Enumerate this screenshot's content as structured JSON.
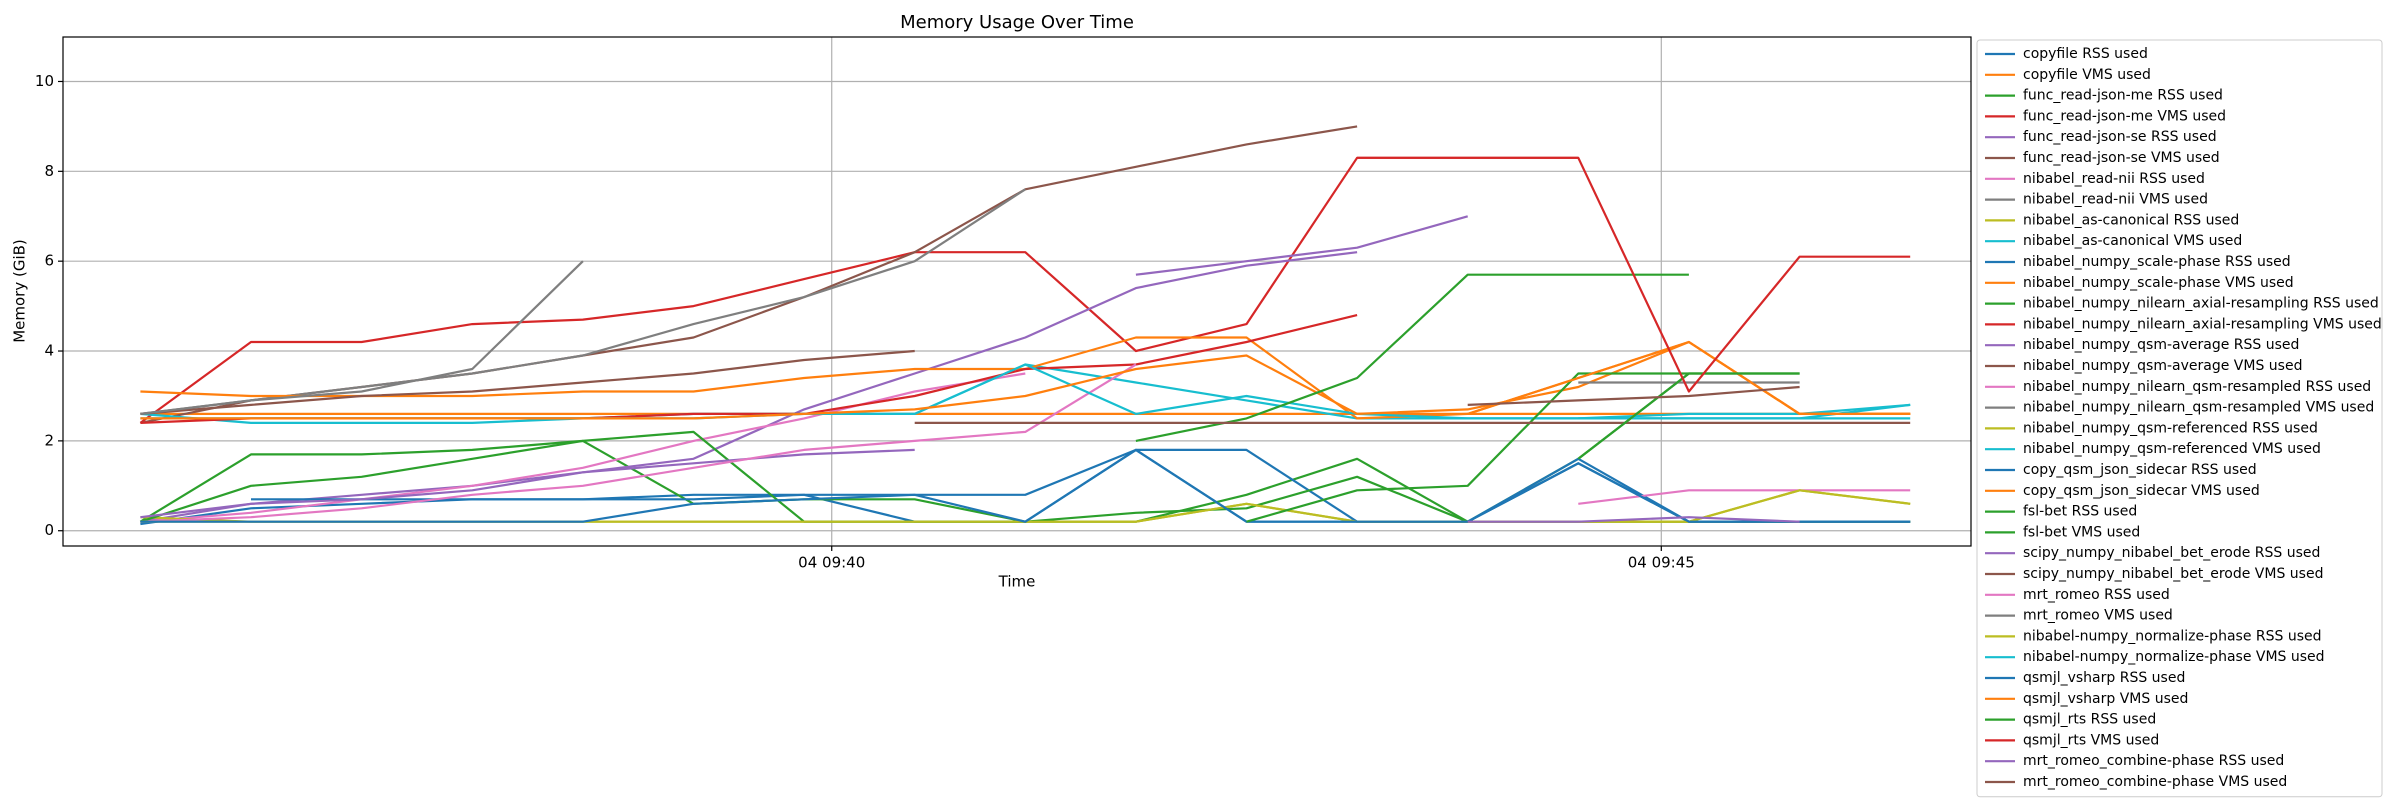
{
  "chart_data": {
    "type": "line",
    "title": "Memory Usage Over Time",
    "x_label": "Time",
    "y_label": "Memory (GiB)",
    "x": [
      "04 09:35:50",
      "04 09:36:30",
      "04 09:37:10",
      "04 09:37:50",
      "04 09:38:30",
      "04 09:39:10",
      "04 09:39:50",
      "04 09:40:30",
      "04 09:41:10",
      "04 09:41:50",
      "04 09:42:30",
      "04 09:43:10",
      "04 09:43:50",
      "04 09:44:30",
      "04 09:45:10",
      "04 09:45:50",
      "04 09:46:30"
    ],
    "xlim": [
      "04 09:35:22",
      "04 09:46:52"
    ],
    "xticks": [
      "04 09:40",
      "04 09:45"
    ],
    "ylim": [
      -0.34,
      10.99
    ],
    "yticks": [
      0,
      2,
      4,
      6,
      8,
      10
    ],
    "grid": true,
    "legend": "outside-right",
    "series": [
      {
        "name": "copyfile RSS used",
        "color": "#1f77b4",
        "values": [
          0.15,
          0.5,
          0.6,
          0.7,
          0.7,
          0.8,
          0.8,
          0.2,
          0.2,
          1.8,
          0.2,
          0.2,
          0.2,
          1.5,
          0.2,
          0.2,
          0.2
        ]
      },
      {
        "name": "copyfile VMS used",
        "color": "#ff7f0e",
        "values": [
          2.6,
          2.6,
          2.6,
          2.6,
          2.6,
          2.6,
          2.6,
          2.6,
          2.6,
          2.6,
          2.6,
          2.6,
          2.6,
          2.6,
          2.6,
          2.6,
          2.6
        ]
      },
      {
        "name": "func_read-json-me RSS used",
        "color": "#2ca02c",
        "values": [
          0.2,
          1.7,
          1.7,
          1.8,
          2.0,
          0.6,
          0.7,
          0.7,
          0.2,
          0.2,
          0.8,
          1.6,
          0.2,
          1.6,
          3.5,
          3.5,
          null
        ]
      },
      {
        "name": "func_read-json-me VMS used",
        "color": "#d62728",
        "values": [
          2.4,
          4.2,
          4.2,
          4.6,
          4.7,
          5.0,
          5.6,
          6.2,
          6.2,
          4.0,
          4.6,
          8.3,
          8.3,
          8.3,
          null,
          null,
          null
        ]
      },
      {
        "name": "func_read-json-se RSS used",
        "color": "#9467bd",
        "values": [
          0.2,
          0.6,
          0.8,
          1.0,
          1.3,
          1.6,
          2.7,
          3.5,
          4.3,
          5.4,
          5.9,
          6.2,
          null,
          null,
          null,
          null,
          null
        ]
      },
      {
        "name": "func_read-json-se VMS used",
        "color": "#8c564b",
        "values": [
          2.4,
          2.9,
          3.2,
          3.5,
          3.9,
          4.3,
          5.2,
          6.2,
          7.6,
          8.1,
          8.6,
          9.0,
          null,
          null,
          null,
          null,
          null
        ]
      },
      {
        "name": "nibabel_read-nii RSS used",
        "color": "#e377c2",
        "values": [
          0.2,
          0.4,
          0.7,
          1.0,
          1.4,
          2.0,
          2.5,
          3.1,
          3.5,
          null,
          null,
          null,
          null,
          null,
          null,
          null,
          null
        ]
      },
      {
        "name": "nibabel_read-nii VMS used",
        "color": "#7f7f7f",
        "values": [
          2.6,
          2.9,
          3.2,
          3.5,
          3.9,
          4.6,
          5.2,
          6.0,
          7.6,
          null,
          null,
          null,
          null,
          null,
          null,
          null,
          null
        ]
      },
      {
        "name": "nibabel_as-canonical RSS used",
        "color": "#bcbd22",
        "values": [
          0.3,
          0.2,
          0.2,
          0.2,
          0.2,
          0.2,
          0.2,
          0.2,
          0.2,
          0.2,
          0.6,
          0.2,
          0.2,
          0.2,
          0.2,
          0.9,
          0.6
        ]
      },
      {
        "name": "nibabel_as-canonical VMS used",
        "color": "#17becf",
        "values": [
          2.6,
          2.4,
          2.4,
          2.4,
          2.5,
          2.6,
          2.6,
          2.6,
          3.7,
          3.3,
          2.9,
          2.5,
          2.5,
          2.5,
          2.6,
          2.6,
          2.8
        ]
      },
      {
        "name": "nibabel_numpy_scale-phase RSS used",
        "color": "#1f77b4",
        "values": [
          null,
          0.7,
          0.7,
          0.7,
          0.7,
          0.7,
          0.8,
          0.8,
          0.8,
          1.8,
          1.8,
          0.2,
          0.2,
          1.6,
          0.2,
          0.2,
          0.2
        ]
      },
      {
        "name": "nibabel_numpy_scale-phase VMS used",
        "color": "#ff7f0e",
        "values": [
          3.1,
          3.0,
          3.0,
          3.0,
          3.1,
          3.1,
          3.4,
          3.6,
          3.6,
          4.3,
          4.3,
          2.5,
          2.6,
          3.4,
          4.2,
          2.6,
          2.6
        ]
      },
      {
        "name": "nibabel_numpy_nilearn_axial-resampling RSS used",
        "color": "#2ca02c",
        "values": [
          0.2,
          1.0,
          1.2,
          1.6,
          2.0,
          2.2,
          0.2,
          0.2,
          0.2,
          0.4,
          0.5,
          1.2,
          0.2,
          0.2,
          0.2,
          0.2,
          0.2
        ]
      },
      {
        "name": "nibabel_numpy_nilearn_axial-resampling VMS used",
        "color": "#d62728",
        "values": [
          2.4,
          2.5,
          2.5,
          2.5,
          2.5,
          2.6,
          2.6,
          3.0,
          3.6,
          3.7,
          4.2,
          4.8,
          null,
          null,
          null,
          null,
          null
        ]
      },
      {
        "name": "nibabel_numpy_qsm-average RSS used",
        "color": "#9467bd",
        "values": [
          0.3,
          0.6,
          0.7,
          0.9,
          1.3,
          1.5,
          1.7,
          1.8,
          null,
          null,
          null,
          null,
          null,
          null,
          null,
          null,
          null
        ]
      },
      {
        "name": "nibabel_numpy_qsm-average VMS used",
        "color": "#8c564b",
        "values": [
          2.6,
          2.8,
          3.0,
          3.1,
          3.3,
          3.5,
          3.8,
          4.0,
          null,
          null,
          null,
          null,
          null,
          null,
          null,
          null,
          null
        ]
      },
      {
        "name": "nibabel_numpy_nilearn_qsm-resampled RSS used",
        "color": "#e377c2",
        "values": [
          0.2,
          0.3,
          0.5,
          0.8,
          1.0,
          1.4,
          1.8,
          2.0,
          2.2,
          3.7,
          null,
          null,
          null,
          null,
          null,
          null,
          null
        ]
      },
      {
        "name": "nibabel_numpy_nilearn_qsm-resampled VMS used",
        "color": "#7f7f7f",
        "values": [
          2.6,
          2.9,
          3.1,
          3.6,
          6.0,
          null,
          null,
          null,
          null,
          null,
          null,
          null,
          null,
          null,
          null,
          null,
          null
        ]
      },
      {
        "name": "nibabel_numpy_qsm-referenced RSS used",
        "color": "#bcbd22",
        "values": [
          0.2,
          0.2,
          0.2,
          0.2,
          0.2,
          0.2,
          0.2,
          0.2,
          0.2,
          0.2,
          0.6,
          0.2,
          0.2,
          0.2,
          0.2,
          0.2,
          0.2
        ]
      },
      {
        "name": "nibabel_numpy_qsm-referenced VMS used",
        "color": "#17becf",
        "values": [
          2.5,
          2.5,
          2.5,
          2.5,
          2.5,
          2.5,
          2.6,
          2.6,
          3.7,
          2.6,
          3.0,
          2.6,
          2.5,
          2.5,
          2.5,
          2.5,
          2.5
        ]
      },
      {
        "name": "copy_qsm_json_sidecar RSS used",
        "color": "#1f77b4",
        "values": [
          0.2,
          0.2,
          0.2,
          0.2,
          0.2,
          0.6,
          0.7,
          0.8,
          0.2,
          1.8,
          0.2,
          0.2,
          0.2,
          1.5,
          0.2,
          0.2,
          0.2
        ]
      },
      {
        "name": "copy_qsm_json_sidecar VMS used",
        "color": "#ff7f0e",
        "values": [
          2.5,
          2.5,
          2.5,
          2.5,
          2.5,
          2.5,
          2.6,
          2.7,
          3.0,
          3.6,
          3.9,
          2.6,
          2.7,
          3.2,
          4.2,
          2.6,
          2.6
        ]
      },
      {
        "name": "fsl-bet RSS used",
        "color": "#2ca02c",
        "values": [
          null,
          null,
          null,
          null,
          null,
          null,
          null,
          null,
          null,
          null,
          0.2,
          0.9,
          1.0,
          3.5,
          3.5,
          null,
          null
        ]
      },
      {
        "name": "fsl-bet VMS used",
        "color": "#2ca02c",
        "values": [
          null,
          null,
          null,
          null,
          null,
          null,
          null,
          null,
          null,
          2.0,
          2.5,
          3.4,
          5.7,
          5.7,
          5.7,
          null,
          null
        ]
      },
      {
        "name": "scipy_numpy_nibabel_bet_erode RSS used",
        "color": "#9467bd",
        "values": [
          null,
          null,
          null,
          null,
          null,
          null,
          null,
          null,
          null,
          5.7,
          6.0,
          6.3,
          7.0,
          null,
          null,
          null,
          null
        ]
      },
      {
        "name": "scipy_numpy_nibabel_bet_erode VMS used",
        "color": "#8c564b",
        "values": [
          null,
          null,
          null,
          null,
          null,
          null,
          null,
          2.4,
          2.4,
          2.4,
          2.4,
          2.4,
          2.4,
          2.4,
          2.4,
          2.4,
          2.4
        ]
      },
      {
        "name": "mrt_romeo RSS used",
        "color": "#e377c2",
        "values": [
          null,
          null,
          null,
          null,
          null,
          null,
          null,
          null,
          null,
          null,
          null,
          null,
          null,
          0.6,
          0.9,
          0.9,
          0.9
        ]
      },
      {
        "name": "mrt_romeo VMS used",
        "color": "#7f7f7f",
        "values": [
          null,
          null,
          null,
          null,
          null,
          null,
          null,
          null,
          null,
          null,
          null,
          null,
          null,
          3.3,
          3.3,
          3.3,
          null
        ]
      },
      {
        "name": "nibabel-numpy_normalize-phase RSS used",
        "color": "#bcbd22",
        "values": [
          null,
          null,
          null,
          null,
          null,
          null,
          null,
          null,
          null,
          null,
          null,
          null,
          null,
          0.2,
          0.2,
          0.9,
          0.6
        ]
      },
      {
        "name": "nibabel-numpy_normalize-phase VMS used",
        "color": "#17becf",
        "values": [
          null,
          null,
          null,
          null,
          null,
          null,
          null,
          null,
          null,
          null,
          null,
          null,
          null,
          2.5,
          2.5,
          2.5,
          2.8
        ]
      },
      {
        "name": "qsmjl_vsharp RSS used",
        "color": "#1f77b4",
        "values": [
          null,
          null,
          null,
          null,
          null,
          null,
          null,
          null,
          null,
          null,
          null,
          null,
          0.2,
          1.5,
          0.2,
          0.2,
          0.2
        ]
      },
      {
        "name": "qsmjl_vsharp VMS used",
        "color": "#ff7f0e",
        "values": [
          null,
          null,
          null,
          null,
          null,
          null,
          null,
          null,
          null,
          null,
          null,
          null,
          2.6,
          3.4,
          4.2,
          2.6,
          2.6
        ]
      },
      {
        "name": "qsmjl_rts RSS used",
        "color": "#2ca02c",
        "values": [
          null,
          null,
          null,
          null,
          null,
          null,
          null,
          null,
          null,
          null,
          null,
          null,
          null,
          1.6,
          3.5,
          3.5,
          null
        ]
      },
      {
        "name": "qsmjl_rts VMS used",
        "color": "#d62728",
        "values": [
          null,
          null,
          null,
          null,
          null,
          null,
          null,
          null,
          null,
          null,
          null,
          8.3,
          8.3,
          8.3,
          3.1,
          6.1,
          6.1
        ]
      },
      {
        "name": "mrt_romeo_combine-phase RSS used",
        "color": "#9467bd",
        "values": [
          null,
          null,
          null,
          null,
          null,
          null,
          null,
          null,
          null,
          null,
          null,
          null,
          0.2,
          0.2,
          0.3,
          0.2,
          null
        ]
      },
      {
        "name": "mrt_romeo_combine-phase VMS used",
        "color": "#8c564b",
        "values": [
          null,
          null,
          null,
          null,
          null,
          null,
          null,
          null,
          null,
          null,
          null,
          null,
          2.8,
          2.9,
          3.0,
          3.2,
          null
        ]
      }
    ]
  }
}
